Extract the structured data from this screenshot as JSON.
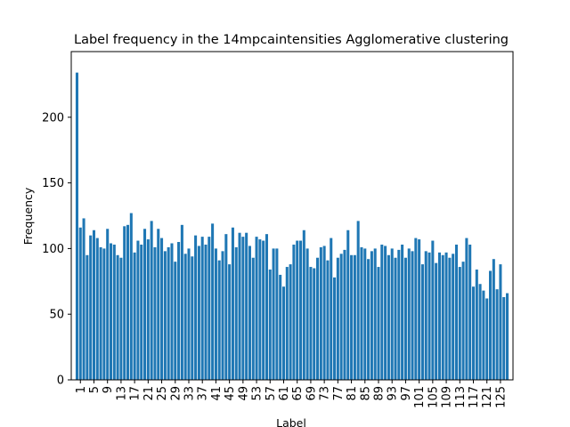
{
  "chart_data": {
    "type": "bar",
    "title": "Label frequency in the 14mpcaintensities Agglomerative clustering",
    "xlabel": "Label",
    "ylabel": "Frequency",
    "ylim": [
      0,
      250
    ],
    "yticks": [
      0,
      50,
      100,
      150,
      200
    ],
    "xticks": [
      1,
      5,
      9,
      13,
      17,
      21,
      25,
      29,
      33,
      37,
      41,
      45,
      49,
      53,
      57,
      61,
      65,
      69,
      73,
      77,
      81,
      85,
      89,
      93,
      97,
      101,
      105,
      109,
      113,
      117,
      121,
      125
    ],
    "grid": false,
    "color": "#1f77b4",
    "x": [
      0,
      1,
      2,
      3,
      4,
      5,
      6,
      7,
      8,
      9,
      10,
      11,
      12,
      13,
      14,
      15,
      16,
      17,
      18,
      19,
      20,
      21,
      22,
      23,
      24,
      25,
      26,
      27,
      28,
      29,
      30,
      31,
      32,
      33,
      34,
      35,
      36,
      37,
      38,
      39,
      40,
      41,
      42,
      43,
      44,
      45,
      46,
      47,
      48,
      49,
      50,
      51,
      52,
      53,
      54,
      55,
      56,
      57,
      58,
      59,
      60,
      61,
      62,
      63,
      64,
      65,
      66,
      67,
      68,
      69,
      70,
      71,
      72,
      73,
      74,
      75,
      76,
      77,
      78,
      79,
      80,
      81,
      82,
      83,
      84,
      85,
      86,
      87,
      88,
      89,
      90,
      91,
      92,
      93,
      94,
      95,
      96,
      97,
      98,
      99,
      100,
      101,
      102,
      103,
      104,
      105,
      106,
      107,
      108,
      109,
      110,
      111,
      112,
      113,
      114,
      115,
      116,
      117,
      118,
      119,
      120,
      121,
      122,
      123,
      124,
      125,
      126,
      127
    ],
    "values": [
      234,
      116,
      123,
      95,
      110,
      114,
      108,
      101,
      100,
      115,
      104,
      103,
      95,
      93,
      117,
      118,
      127,
      97,
      106,
      103,
      115,
      107,
      121,
      101,
      115,
      108,
      98,
      101,
      104,
      90,
      105,
      118,
      96,
      100,
      94,
      110,
      102,
      109,
      103,
      109,
      119,
      100,
      91,
      98,
      111,
      88,
      116,
      101,
      112,
      109,
      112,
      102,
      93,
      109,
      107,
      106,
      111,
      84,
      100,
      100,
      80,
      71,
      86,
      88,
      103,
      106,
      106,
      114,
      100,
      86,
      85,
      93,
      101,
      102,
      91,
      108,
      78,
      93,
      96,
      99,
      114,
      95,
      95,
      121,
      101,
      100,
      92,
      98,
      100,
      86,
      103,
      102,
      95,
      100,
      93,
      99,
      103,
      93,
      100,
      98,
      108,
      107,
      88,
      98,
      97,
      106,
      89,
      97,
      95,
      97,
      93,
      96,
      103,
      86,
      90,
      108,
      103,
      71,
      84,
      73,
      68,
      62,
      83,
      92,
      69,
      88,
      63,
      66
    ]
  }
}
